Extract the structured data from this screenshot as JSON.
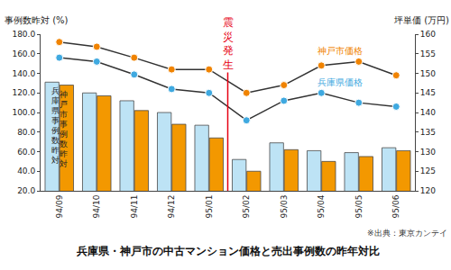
{
  "chart_data": {
    "type": "bar",
    "title": "兵庫県・神戸市の中古マンション価格と売出事例数の昨年対比",
    "source": "※出典：東京カンテイ",
    "y_label": "事例数昨対 (%)",
    "y2_label": "坪単価 (万円)",
    "categories": [
      "94/09",
      "94/10",
      "94/11",
      "94/12",
      "95/01",
      "95/02",
      "95/03",
      "95/04",
      "95/05",
      "95/06"
    ],
    "series": [
      {
        "name": "兵庫県事例数昨対",
        "type": "bar",
        "color": "#bde3f5",
        "values": [
          131,
          120,
          112,
          100,
          87,
          52,
          69,
          61,
          59,
          64
        ]
      },
      {
        "name": "神戸市事例数昨対",
        "type": "bar",
        "color": "#f39800",
        "values": [
          128,
          117,
          102,
          88,
          74,
          40,
          62,
          50,
          55,
          61
        ]
      },
      {
        "name": "神戸市価格",
        "type": "line",
        "axis": "y2",
        "color": "#f08300",
        "marker": "circle",
        "values": [
          158,
          156.8,
          154,
          151,
          151,
          145,
          147,
          152,
          153,
          149.5
        ]
      },
      {
        "name": "兵庫県価格",
        "type": "line",
        "axis": "y2",
        "color": "#3fa9e0",
        "marker": "circle",
        "values": [
          154,
          153,
          149.7,
          146,
          145,
          138,
          143,
          145,
          142.5,
          141.5
        ]
      }
    ],
    "ylim": [
      20,
      180
    ],
    "yticks": [
      {
        "value": 20,
        "label": "20.0"
      },
      {
        "value": 40,
        "label": "40.0"
      },
      {
        "value": 60,
        "label": "60.0"
      },
      {
        "value": 80,
        "label": "80.0"
      },
      {
        "value": 100,
        "label": "100.0"
      },
      {
        "value": 120,
        "label": "120.0"
      },
      {
        "value": 140,
        "label": "140.0"
      },
      {
        "value": 160,
        "label": "160.0"
      },
      {
        "value": 180,
        "label": "180.0"
      }
    ],
    "y2lim": [
      120,
      160
    ],
    "y2ticks": [
      120,
      125,
      130,
      135,
      140,
      145,
      150,
      155,
      160
    ],
    "grid": false,
    "annotations": [
      {
        "text": "震災発生",
        "between": [
          "95/01",
          "95/02"
        ],
        "color": "#e60012"
      }
    ]
  }
}
